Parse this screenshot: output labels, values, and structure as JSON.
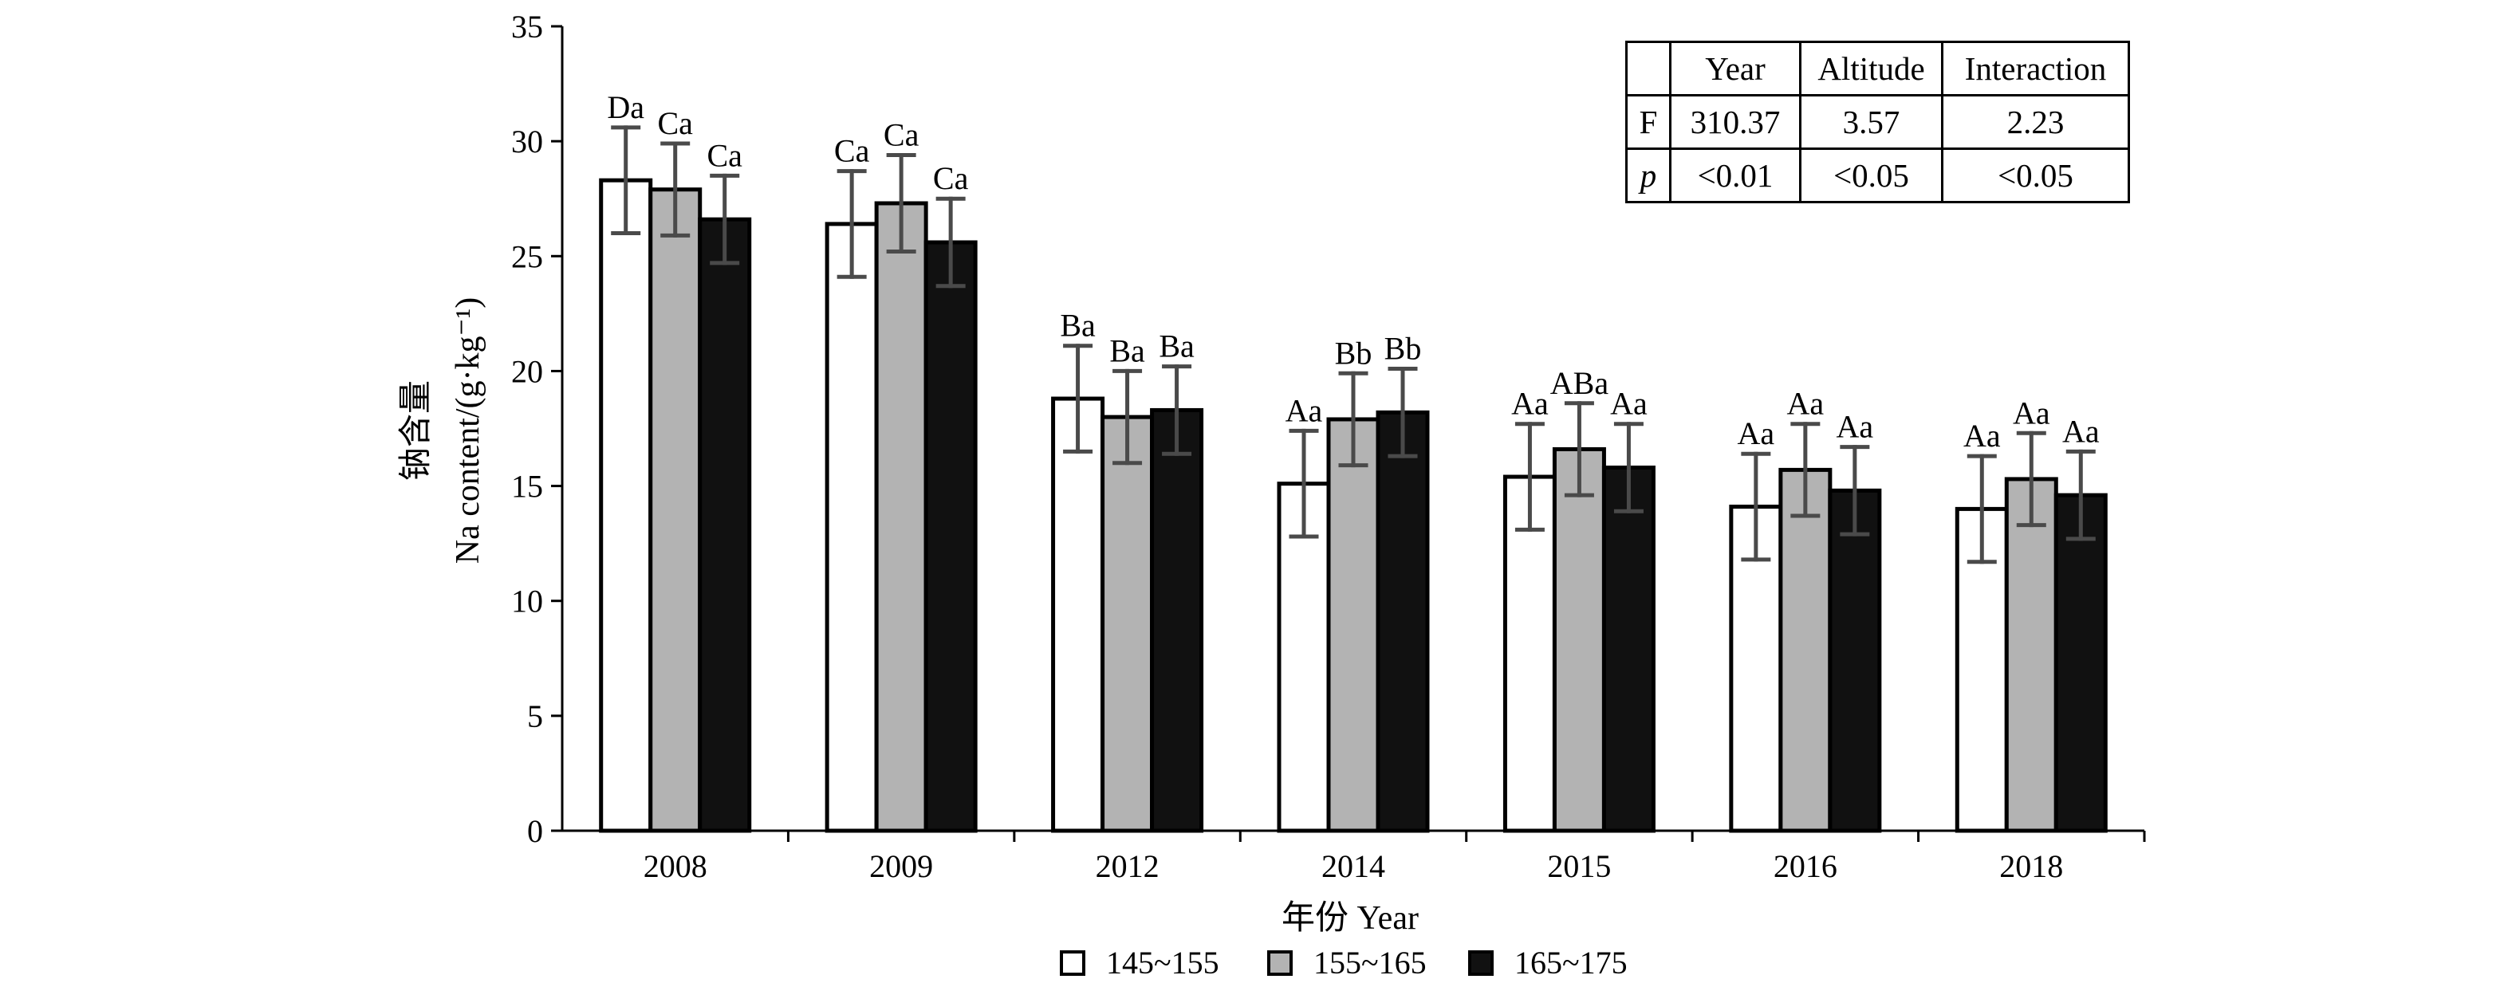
{
  "chart_data": {
    "type": "bar",
    "categories": [
      "2008",
      "2009",
      "2012",
      "2014",
      "2015",
      "2016",
      "2018"
    ],
    "series": [
      {
        "name": "145~155",
        "color": "#ffffff",
        "values": [
          28.3,
          26.4,
          18.8,
          15.1,
          15.4,
          14.1,
          14.0
        ],
        "errors": [
          2.3,
          2.3,
          2.3,
          2.3,
          2.3,
          2.3,
          2.3
        ],
        "labels": [
          "Da",
          "Ca",
          "Ba",
          "Aa",
          "Aa",
          "Aa",
          "Aa"
        ]
      },
      {
        "name": "155~165",
        "color": "#b3b3b3",
        "values": [
          27.9,
          27.3,
          18.0,
          17.9,
          16.6,
          15.7,
          15.3
        ],
        "errors": [
          2.0,
          2.1,
          2.0,
          2.0,
          2.0,
          2.0,
          2.0
        ],
        "labels": [
          "Ca",
          "Ca",
          "Ba",
          "Bb",
          "ABa",
          "Aa",
          "Aa"
        ]
      },
      {
        "name": "165~175",
        "color": "#111111",
        "values": [
          26.6,
          25.6,
          18.3,
          18.2,
          15.8,
          14.8,
          14.6
        ],
        "errors": [
          1.9,
          1.9,
          1.9,
          1.9,
          1.9,
          1.9,
          1.9
        ],
        "labels": [
          "Ca",
          "Ca",
          "Ba",
          "Bb",
          "Aa",
          "Aa",
          "Aa"
        ]
      }
    ],
    "xlabel": "年份 Year",
    "ylabel": [
      "钠含量",
      "Na content/(g·kg⁻¹)"
    ],
    "ylim": [
      0,
      35
    ],
    "yticks": [
      0,
      5,
      10,
      15,
      20,
      25,
      30,
      35
    ],
    "error_bar_color": "#4a4a4a",
    "grid": false,
    "legend": "bottom"
  },
  "stats_table": {
    "columns": [
      "Year",
      "Altitude",
      "Interaction"
    ],
    "rows": [
      [
        "F",
        "310.37",
        "3.57",
        "2.23"
      ],
      [
        "p",
        "<0.01",
        "<0.05",
        "<0.05"
      ]
    ]
  }
}
